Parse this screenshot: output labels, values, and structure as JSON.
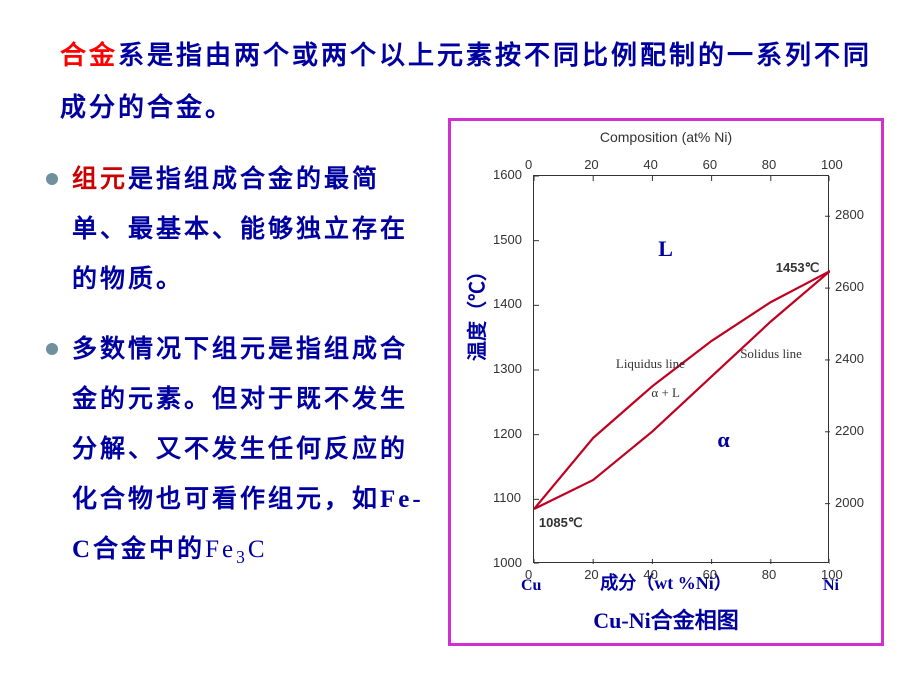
{
  "intro": {
    "kw_alloy": "合金",
    "kw_sys": "系",
    "rest": "是指由两个或两个以上元素按不同比例配制的一系列不同成分的合金。"
  },
  "bullets": [
    {
      "dot_color": "#7090a0",
      "kw": "组元",
      "rest": "是指组成合金的最简单、最基本、能够独立存在的物质。"
    },
    {
      "dot_color": "#7090a0",
      "kw": "",
      "rest": "多数情况下组元是指组成合金的元素。但对于既不发生分解、又不发生任何反应的化合物也可看作组元，如Fe-C合金中的",
      "fe3c_a": "Fe",
      "fe3c_sub": "3",
      "fe3c_b": "C"
    }
  ],
  "chart": {
    "caption": "Cu-Ni合金相图",
    "top_title": "Composition (at% Ni)",
    "ylabel": "温度（℃）",
    "xlabel": "成分（wt %Ni）",
    "corner_left": "Cu",
    "corner_right": "Ni",
    "region_L": "L",
    "region_alpha": "α",
    "liquidus_label": "Liquidus line",
    "solidus_label": "Solidus line",
    "alpha_plus_L": "α + L",
    "mp_cu": "1085℃",
    "mp_ni": "1453℃",
    "left_y": {
      "min": 1000,
      "max": 1600,
      "ticks": [
        1000,
        1100,
        1200,
        1300,
        1400,
        1500,
        1600
      ]
    },
    "right_y": {
      "ticks": [
        2000,
        2200,
        2400,
        2600,
        2800
      ]
    },
    "top_x": {
      "ticks": [
        0,
        20,
        40,
        60,
        80,
        100
      ]
    },
    "bottom_x": {
      "ticks": [
        0,
        20,
        40,
        60,
        80,
        100
      ]
    },
    "liquidus": [
      [
        0,
        1085
      ],
      [
        20,
        1195
      ],
      [
        40,
        1275
      ],
      [
        60,
        1345
      ],
      [
        80,
        1405
      ],
      [
        100,
        1453
      ]
    ],
    "solidus": [
      [
        0,
        1085
      ],
      [
        20,
        1130
      ],
      [
        40,
        1205
      ],
      [
        60,
        1290
      ],
      [
        80,
        1375
      ],
      [
        100,
        1453
      ]
    ],
    "line_color": "#c00020",
    "line_width": 2.2,
    "text_color": "#0000a0"
  }
}
